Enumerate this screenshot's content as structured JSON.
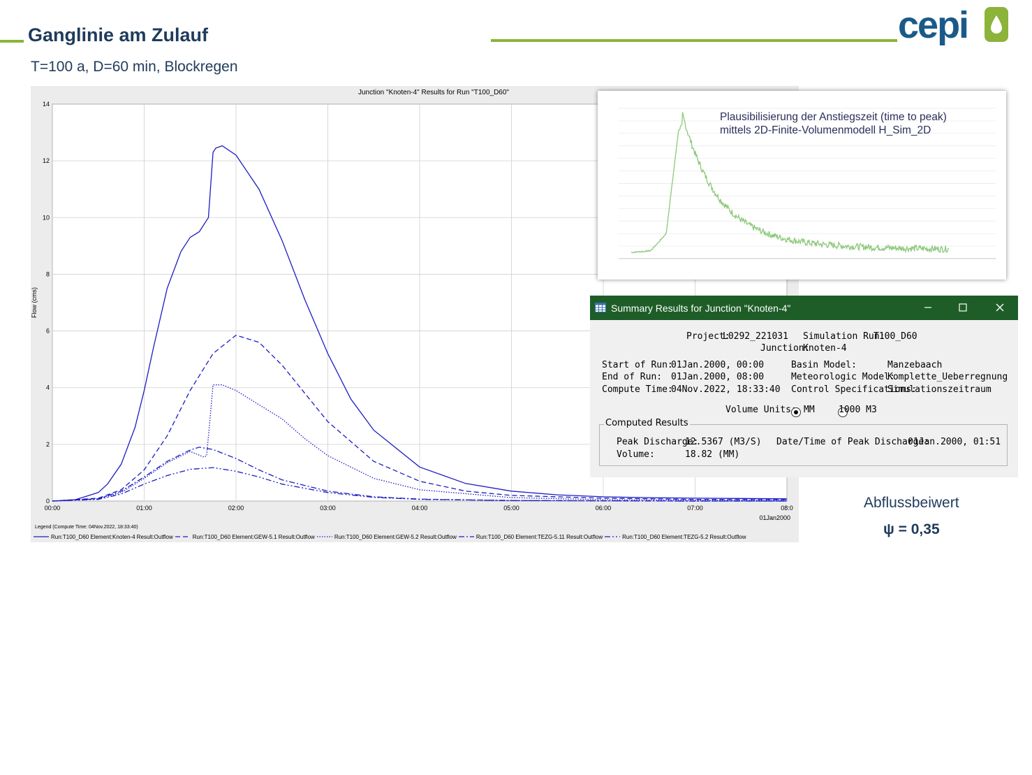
{
  "slide": {
    "title": "Ganglinie am Zulauf",
    "subtitle": "T=100 a, D=60 min, Blockregen",
    "coef_label": "Abflussbeiwert",
    "coef_value": "ψ = 0,35",
    "accent_color": "#8cb33a",
    "title_color": "#1f3b5c"
  },
  "logo": {
    "text": "cepi",
    "color": "#1a5a8a",
    "accent": "#8cb33a"
  },
  "chart_data": {
    "type": "line",
    "title": "Junction \"Knoten-4\" Results for Run \"T100_D60\"",
    "ylabel": "Flow (cms)",
    "xlabel": "",
    "ylim": [
      0,
      14
    ],
    "xlim": [
      0,
      8
    ],
    "y_ticks": [
      "0",
      "2",
      "4",
      "6",
      "8",
      "10",
      "12",
      "14"
    ],
    "x_ticks": [
      "00:00",
      "01:00",
      "02:00",
      "03:00",
      "04:00",
      "05:00",
      "06:00",
      "07:00",
      "08:0"
    ],
    "x_date_label": "01Jan2000",
    "grid": true,
    "legend_title": "Legend (Compute Time: 04Nov.2022, 18:33:40)",
    "series": [
      {
        "name": "Run:T100_D60 Element:Knoten-4 Result:Outflow",
        "style": "solid",
        "x": [
          0,
          0.25,
          0.5,
          0.6,
          0.75,
          0.9,
          1.0,
          1.1,
          1.25,
          1.4,
          1.5,
          1.6,
          1.7,
          1.75,
          1.78,
          1.85,
          2.0,
          2.25,
          2.5,
          2.75,
          3.0,
          3.25,
          3.5,
          4.0,
          4.5,
          5.0,
          5.5,
          6.0,
          6.5,
          7.0,
          7.5,
          8.0
        ],
        "y": [
          0,
          0.05,
          0.3,
          0.6,
          1.3,
          2.6,
          3.9,
          5.4,
          7.5,
          8.8,
          9.3,
          9.5,
          10.0,
          12.3,
          12.45,
          12.53,
          12.2,
          11.0,
          9.2,
          7.1,
          5.2,
          3.6,
          2.5,
          1.2,
          0.62,
          0.35,
          0.22,
          0.15,
          0.12,
          0.1,
          0.09,
          0.08
        ]
      },
      {
        "name": "Run:T100_D60 Element:GEW-5.1 Result:Outflow",
        "style": "dashed",
        "x": [
          0,
          0.5,
          0.75,
          1.0,
          1.25,
          1.5,
          1.75,
          2.0,
          2.25,
          2.5,
          2.75,
          3.0,
          3.5,
          4.0,
          4.5,
          5.0,
          6.0,
          7.0,
          8.0
        ],
        "y": [
          0,
          0.1,
          0.4,
          1.1,
          2.3,
          3.9,
          5.2,
          5.85,
          5.6,
          4.8,
          3.8,
          2.8,
          1.4,
          0.7,
          0.35,
          0.2,
          0.1,
          0.06,
          0.05
        ]
      },
      {
        "name": "Run:T100_D60 Element:GEW-5.2 Result:Outflow",
        "style": "dotted",
        "x": [
          0,
          0.5,
          0.75,
          1.0,
          1.25,
          1.5,
          1.65,
          1.68,
          1.72,
          1.75,
          1.85,
          2.0,
          2.25,
          2.5,
          2.75,
          3.0,
          3.5,
          4.0,
          5.0,
          6.0,
          7.0,
          8.0
        ],
        "y": [
          0,
          0.08,
          0.3,
          0.8,
          1.35,
          1.75,
          1.55,
          1.6,
          3.0,
          4.1,
          4.1,
          3.9,
          3.4,
          2.9,
          2.2,
          1.6,
          0.8,
          0.4,
          0.12,
          0.05,
          0.03,
          0.02
        ]
      },
      {
        "name": "Run:T100_D60 Element:TEZG-5.11 Result:Outflow",
        "style": "dashdot",
        "x": [
          0,
          0.5,
          0.75,
          1.0,
          1.25,
          1.5,
          1.6,
          1.75,
          2.0,
          2.25,
          2.5,
          3.0,
          3.5,
          4.0,
          5.0,
          6.0,
          7.0,
          8.0
        ],
        "y": [
          0,
          0.08,
          0.35,
          0.85,
          1.4,
          1.8,
          1.9,
          1.82,
          1.5,
          1.1,
          0.75,
          0.35,
          0.15,
          0.07,
          0.02,
          0.01,
          0,
          0
        ]
      },
      {
        "name": "Run:T100_D60 Element:TEZG-5.2 Result:Outflow",
        "style": "dashdotdot",
        "x": [
          0,
          0.5,
          0.75,
          1.0,
          1.25,
          1.5,
          1.75,
          2.0,
          2.25,
          2.5,
          3.0,
          3.5,
          4.0,
          5.0,
          6.0,
          7.0,
          8.0
        ],
        "y": [
          0,
          0.06,
          0.25,
          0.6,
          0.9,
          1.12,
          1.18,
          1.05,
          0.85,
          0.6,
          0.3,
          0.13,
          0.06,
          0.02,
          0.01,
          0,
          0
        ]
      }
    ],
    "line_color": "#1c1cc4"
  },
  "inset": {
    "text_line1": "Plausibilisierung der Anstiegszeit (time to peak)",
    "text_line2": "mittels 2D-Finite-Volumenmodell H_Sim_2D",
    "line_color": "#8cc87a"
  },
  "dialog": {
    "title": "Summary Results for Junction \"Knoten-4\"",
    "title_bar_color": "#1e5d27",
    "project_label": "Project:",
    "project_value": "L0292_221031",
    "sim_run_label": "Simulation Run:",
    "sim_run_value": "T100_D60",
    "junction_label": "Junction:",
    "junction_value": "Knoten-4",
    "start_label": "Start of Run:",
    "start_value": "01Jan.2000, 00:00",
    "end_label": "End of Run:",
    "end_value": "01Jan.2000, 08:00",
    "compute_label": "Compute Time:",
    "compute_value": "04Nov.2022, 18:33:40",
    "basin_label": "Basin Model:",
    "basin_value": "Manzebaach",
    "meteo_label": "Meteorologic Model:",
    "meteo_value": "Komplette_Ueberregnung",
    "control_label": "Control Specifications:",
    "control_value": "Simulationszeitraum",
    "volume_units_label": "Volume Units:",
    "unit_mm": "MM",
    "unit_m3": "1000 M3",
    "computed_results_label": "Computed Results",
    "peak_label": "Peak Discharge:",
    "peak_value": "12.5367 (M3/S)",
    "peak_time_label": "Date/Time of Peak Discharge:",
    "peak_time_value": "01Jan.2000, 01:51",
    "volume_label": "Volume:",
    "volume_value": "18.82 (MM)"
  }
}
